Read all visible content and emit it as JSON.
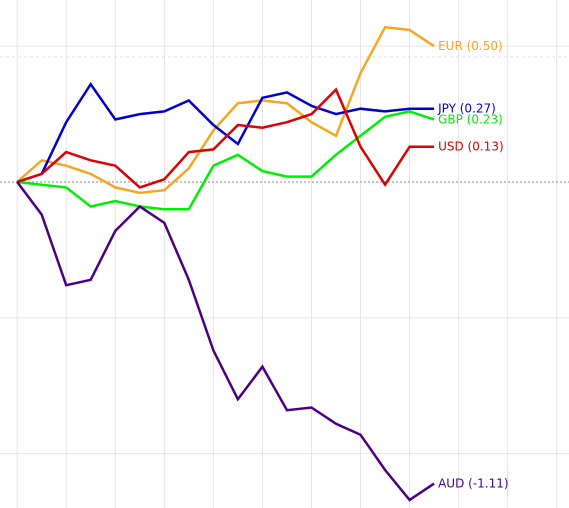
{
  "chart_data": {
    "type": "line",
    "x": [
      0,
      1,
      2,
      3,
      4,
      5,
      6,
      7,
      8,
      9,
      10,
      11,
      12,
      13,
      14,
      15,
      16,
      17
    ],
    "xlim": [
      -0.7,
      22.5
    ],
    "ylim": [
      -1.2,
      0.67
    ],
    "grid": true,
    "series": [
      {
        "name": "EUR",
        "end_label": "EUR (0.50)",
        "color": "#f5a623",
        "values": [
          0.0,
          0.08,
          0.06,
          0.03,
          -0.02,
          -0.04,
          -0.03,
          0.05,
          0.19,
          0.29,
          0.3,
          0.29,
          0.22,
          0.17,
          0.4,
          0.57,
          0.56,
          0.5
        ]
      },
      {
        "name": "JPY",
        "end_label": "JPY (0.27)",
        "color": "#0000cc",
        "values": [
          0.0,
          0.03,
          0.22,
          0.36,
          0.23,
          0.25,
          0.26,
          0.3,
          0.21,
          0.14,
          0.31,
          0.33,
          0.28,
          0.25,
          0.27,
          0.26,
          0.27,
          0.27
        ]
      },
      {
        "name": "GBP",
        "end_label": "GBP (0.23)",
        "color": "#00ee00",
        "values": [
          0.0,
          -0.01,
          -0.02,
          -0.09,
          -0.07,
          -0.09,
          -0.1,
          -0.1,
          0.06,
          0.1,
          0.04,
          0.02,
          0.02,
          0.1,
          0.17,
          0.24,
          0.26,
          0.23
        ]
      },
      {
        "name": "USD",
        "end_label": "USD (0.13)",
        "color": "#dd0000",
        "values": [
          0.0,
          0.03,
          0.11,
          0.08,
          0.06,
          -0.02,
          0.01,
          0.11,
          0.12,
          0.21,
          0.2,
          0.22,
          0.25,
          0.34,
          0.13,
          -0.01,
          0.13,
          0.13
        ]
      },
      {
        "name": "AUD",
        "end_label": "AUD (-1.11)",
        "color": "#4b0082",
        "values": [
          0.0,
          -0.12,
          -0.38,
          -0.36,
          -0.18,
          -0.09,
          -0.15,
          -0.36,
          -0.62,
          -0.8,
          -0.68,
          -0.84,
          -0.83,
          -0.89,
          -0.93,
          -1.06,
          -1.17,
          -1.11
        ]
      }
    ]
  }
}
